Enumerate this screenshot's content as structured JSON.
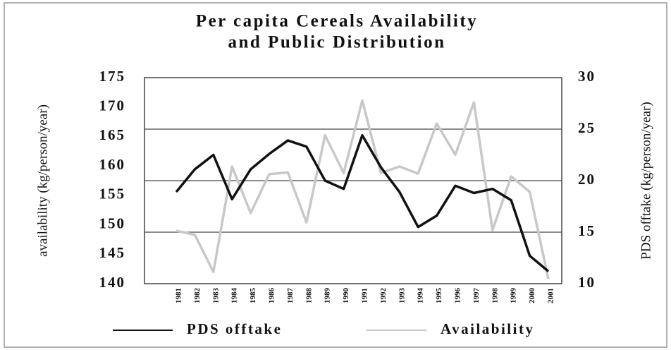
{
  "chart_data": {
    "type": "line",
    "title": [
      "Per capita Cereals Availability",
      "and Public Distribution"
    ],
    "y_label": "availability (kg/person/year)",
    "y2_label": "PDS offtake (kg/person/year)",
    "categories": [
      "1981",
      "1982",
      "1983",
      "1984",
      "1985",
      "1986",
      "1987",
      "1988",
      "1989",
      "1990",
      "1991",
      "1992",
      "1993",
      "1994",
      "1995",
      "1996",
      "1997",
      "1998",
      "1999",
      "2000",
      "2001"
    ],
    "series": [
      {
        "name": "PDS offtake",
        "color": "#111111",
        "axis": "y2",
        "values": [
          18.9,
          21.1,
          22.5,
          18.2,
          21.1,
          22.6,
          23.9,
          23.3,
          20.0,
          19.2,
          24.4,
          21.3,
          18.9,
          15.5,
          16.6,
          19.5,
          18.8,
          19.2,
          18.1,
          12.7,
          11.2
        ]
      },
      {
        "name": "Availability",
        "color": "#c8c8c8",
        "values": [
          149.0,
          148.3,
          142.0,
          159.9,
          152.0,
          158.6,
          158.9,
          150.4,
          165.2,
          158.8,
          171.1,
          158.8,
          159.9,
          158.7,
          167.2,
          161.9,
          170.8,
          149.1,
          158.2,
          155.6,
          140.8
        ]
      }
    ],
    "ylim": [
      140,
      175
    ],
    "yticks": [
      140,
      145,
      150,
      155,
      160,
      165,
      170,
      175
    ],
    "y2lim": [
      10,
      30
    ],
    "y2ticks": [
      10,
      15,
      20,
      25,
      30
    ],
    "grid": true,
    "legend": "bottom"
  }
}
